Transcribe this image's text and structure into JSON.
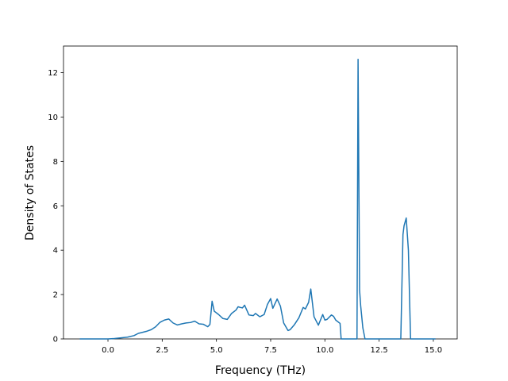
{
  "chart_data": {
    "type": "line",
    "title": "",
    "xlabel": "Frequency (THz)",
    "ylabel": "Density of States",
    "xlim": [
      -2.05,
      16.1
    ],
    "ylim": [
      0,
      13.2
    ],
    "grid": false,
    "legend": "none",
    "line_color": "#1f77b4",
    "x_ticks": [
      {
        "value": 0.0,
        "label": "0.0"
      },
      {
        "value": 2.5,
        "label": "2.5"
      },
      {
        "value": 5.0,
        "label": "5.0"
      },
      {
        "value": 7.5,
        "label": "7.5"
      },
      {
        "value": 10.0,
        "label": "10.0"
      },
      {
        "value": 12.5,
        "label": "12.5"
      },
      {
        "value": 15.0,
        "label": "15.0"
      }
    ],
    "y_ticks": [
      {
        "value": 0,
        "label": "0"
      },
      {
        "value": 2,
        "label": "2"
      },
      {
        "value": 4,
        "label": "4"
      },
      {
        "value": 6,
        "label": "6"
      },
      {
        "value": 8,
        "label": "8"
      },
      {
        "value": 10,
        "label": "10"
      },
      {
        "value": 12,
        "label": "12"
      }
    ],
    "series": [
      {
        "x": [
          -1.3,
          -0.5,
          0.0,
          0.3,
          0.6,
          0.9,
          1.2,
          1.4,
          1.6,
          1.8,
          2.0,
          2.2,
          2.4,
          2.6,
          2.8,
          3.0,
          3.2,
          3.4,
          3.6,
          3.8,
          4.0,
          4.2,
          4.4,
          4.6,
          4.7,
          4.8,
          4.9,
          5.1,
          5.3,
          5.5,
          5.7,
          5.9,
          6.0,
          6.1,
          6.2,
          6.3,
          6.5,
          6.7,
          6.8,
          7.0,
          7.2,
          7.35,
          7.5,
          7.6,
          7.8,
          7.95,
          8.1,
          8.3,
          8.4,
          8.6,
          8.8,
          9.0,
          9.1,
          9.25,
          9.35,
          9.5,
          9.7,
          9.9,
          10.0,
          10.1,
          10.3,
          10.4,
          10.5,
          10.7,
          10.75,
          11.4,
          11.48,
          11.53,
          11.6,
          11.65,
          11.75,
          11.85,
          11.95,
          12.1,
          13.5,
          13.6,
          13.65,
          13.75,
          13.85,
          13.95,
          14.0,
          15.1
        ],
        "y": [
          0.0,
          0.0,
          0.0,
          0.02,
          0.05,
          0.08,
          0.15,
          0.25,
          0.3,
          0.35,
          0.42,
          0.55,
          0.75,
          0.85,
          0.9,
          0.72,
          0.63,
          0.68,
          0.72,
          0.74,
          0.8,
          0.68,
          0.66,
          0.55,
          0.65,
          1.7,
          1.25,
          1.1,
          0.92,
          0.88,
          1.15,
          1.3,
          1.45,
          1.42,
          1.4,
          1.52,
          1.08,
          1.05,
          1.15,
          1.0,
          1.1,
          1.55,
          1.82,
          1.38,
          1.8,
          1.48,
          0.72,
          0.38,
          0.42,
          0.65,
          0.95,
          1.42,
          1.35,
          1.65,
          2.25,
          1.0,
          0.62,
          1.1,
          0.85,
          0.88,
          1.08,
          1.02,
          0.85,
          0.7,
          0.0,
          0.0,
          0.0,
          12.6,
          2.2,
          1.5,
          0.5,
          0.0,
          0.0,
          0.0,
          0.0,
          4.7,
          5.1,
          5.45,
          4.0,
          0.0,
          0.0,
          0.0
        ]
      }
    ]
  }
}
